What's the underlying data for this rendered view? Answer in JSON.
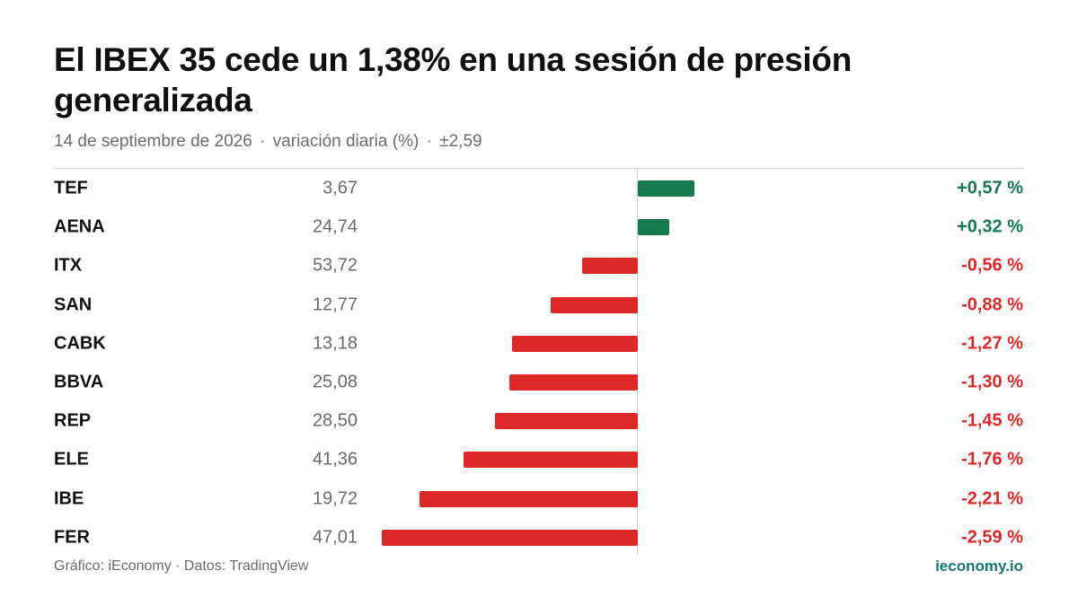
{
  "header": {
    "title": "El IBEX 35 cede un 1,38% en una sesión de presión generalizada",
    "subtitle_date": "14 de septiembre de 2026",
    "subtitle_measure": "variación diaria (%)",
    "subtitle_range": "±2,59",
    "subtitle_separator": "·"
  },
  "footer": {
    "source": "Gráfico: iEconomy · Datos: TradingView",
    "brand": "ieconomy.io"
  },
  "colors": {
    "positive": "#157a4e",
    "negative": "#dc2828",
    "brand": "#157a6e"
  },
  "chart_data": {
    "type": "bar",
    "orientation": "horizontal",
    "title": "El IBEX 35 cede un 1,38% en una sesión de presión generalizada",
    "xlim": [
      -2.59,
      2.59
    ],
    "categories": [
      "TEF",
      "AENA",
      "ITX",
      "SAN",
      "CABK",
      "BBVA",
      "REP",
      "ELE",
      "IBE",
      "FER"
    ],
    "prices": [
      "3,67",
      "24,74",
      "53,72",
      "12,77",
      "13,18",
      "25,08",
      "28,50",
      "41,36",
      "19,72",
      "47,01"
    ],
    "values": [
      0.57,
      0.32,
      -0.56,
      -0.88,
      -1.27,
      -1.3,
      -1.45,
      -1.76,
      -2.21,
      -2.59
    ],
    "value_labels": [
      "+0,57 %",
      "+0,32 %",
      "-0,56 %",
      "-0,88 %",
      "-1,27 %",
      "-1,30 %",
      "-1,45 %",
      "-1,76 %",
      "-2,21 %",
      "-2,59 %"
    ],
    "grid": false,
    "legend": "none"
  }
}
